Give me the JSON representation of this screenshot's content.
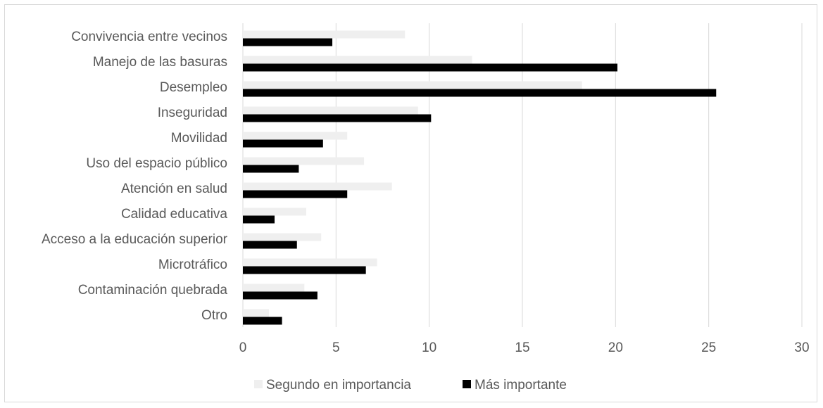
{
  "chart_data": {
    "type": "bar",
    "orientation": "horizontal",
    "categories": [
      "Convivencia entre vecinos",
      "Manejo de las basuras",
      "Desempleo",
      "Inseguridad",
      "Movilidad",
      "Uso del espacio público",
      "Atención en salud",
      "Calidad educativa",
      "Acceso a la educación superior",
      "Microtráfico",
      "Contaminación quebrada",
      "Otro"
    ],
    "series": [
      {
        "name": "Segundo en importancia",
        "color": "#efefef",
        "values": [
          8.7,
          12.3,
          18.2,
          9.4,
          5.6,
          6.5,
          8.0,
          3.4,
          4.2,
          7.2,
          3.3,
          1.4
        ]
      },
      {
        "name": "Más importante",
        "color": "#000000",
        "values": [
          4.8,
          20.1,
          25.4,
          10.1,
          4.3,
          3.0,
          5.6,
          1.7,
          2.9,
          6.6,
          4.0,
          2.1
        ]
      }
    ],
    "xlim": [
      0,
      30
    ],
    "xticks": [
      "0",
      "5",
      "10",
      "15",
      "20",
      "25",
      "30"
    ],
    "grid": "vertical",
    "legend_position": "bottom",
    "title": "",
    "xlabel": "",
    "ylabel": ""
  }
}
